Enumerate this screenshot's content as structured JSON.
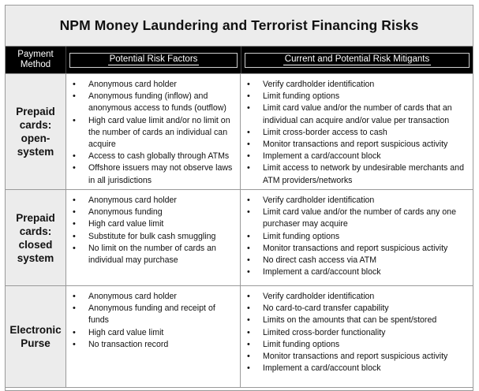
{
  "title": "NPM Money Laundering and Terrorist Financing Risks",
  "headers": {
    "payment_method": "Payment Method",
    "risk_factors": "Potential Risk Factors",
    "mitigants": "Current and Potential Risk Mitigants"
  },
  "rows": [
    {
      "method": "Prepaid cards: open-system",
      "risks": [
        "Anonymous card holder",
        "Anonymous funding (inflow) and anonymous access to funds (outflow)",
        "High card value limit and/or no limit on the number of cards an individual can acquire",
        "Access to cash globally through ATMs",
        "Offshore issuers may not observe laws in all jurisdictions"
      ],
      "mitigants": [
        "Verify cardholder identification",
        "Limit funding options",
        "Limit card value and/or the number of cards that an individual can acquire and/or value per transaction",
        "Limit cross-border access to cash",
        "Monitor transactions and report suspicious activity",
        "Implement a card/account block",
        "Limit access to network by undesirable merchants and ATM providers/networks"
      ]
    },
    {
      "method": "Prepaid cards: closed system",
      "risks": [
        "Anonymous card holder",
        "Anonymous funding",
        "High card value limit",
        "Substitute for bulk cash smuggling",
        "No limit on the number of cards an individual may purchase"
      ],
      "mitigants": [
        "Verify cardholder identification",
        "Limit card value and/or the number of cards any one purchaser may acquire",
        "Limit funding options",
        "Monitor transactions and report suspicious activity",
        "No direct cash access via ATM",
        "Implement a card/account block"
      ]
    },
    {
      "method": "Electronic Purse",
      "risks": [
        "Anonymous card holder",
        "Anonymous funding and receipt of funds",
        "High card value limit",
        "No transaction record"
      ],
      "mitigants": [
        "Verify cardholder identification",
        "No card-to-card transfer capability",
        "Limits on the amounts that can be spent/stored",
        "Limited cross-border functionality",
        "Limit funding options",
        "Monitor transactions and report suspicious activity",
        "Implement a card/account block"
      ]
    }
  ]
}
